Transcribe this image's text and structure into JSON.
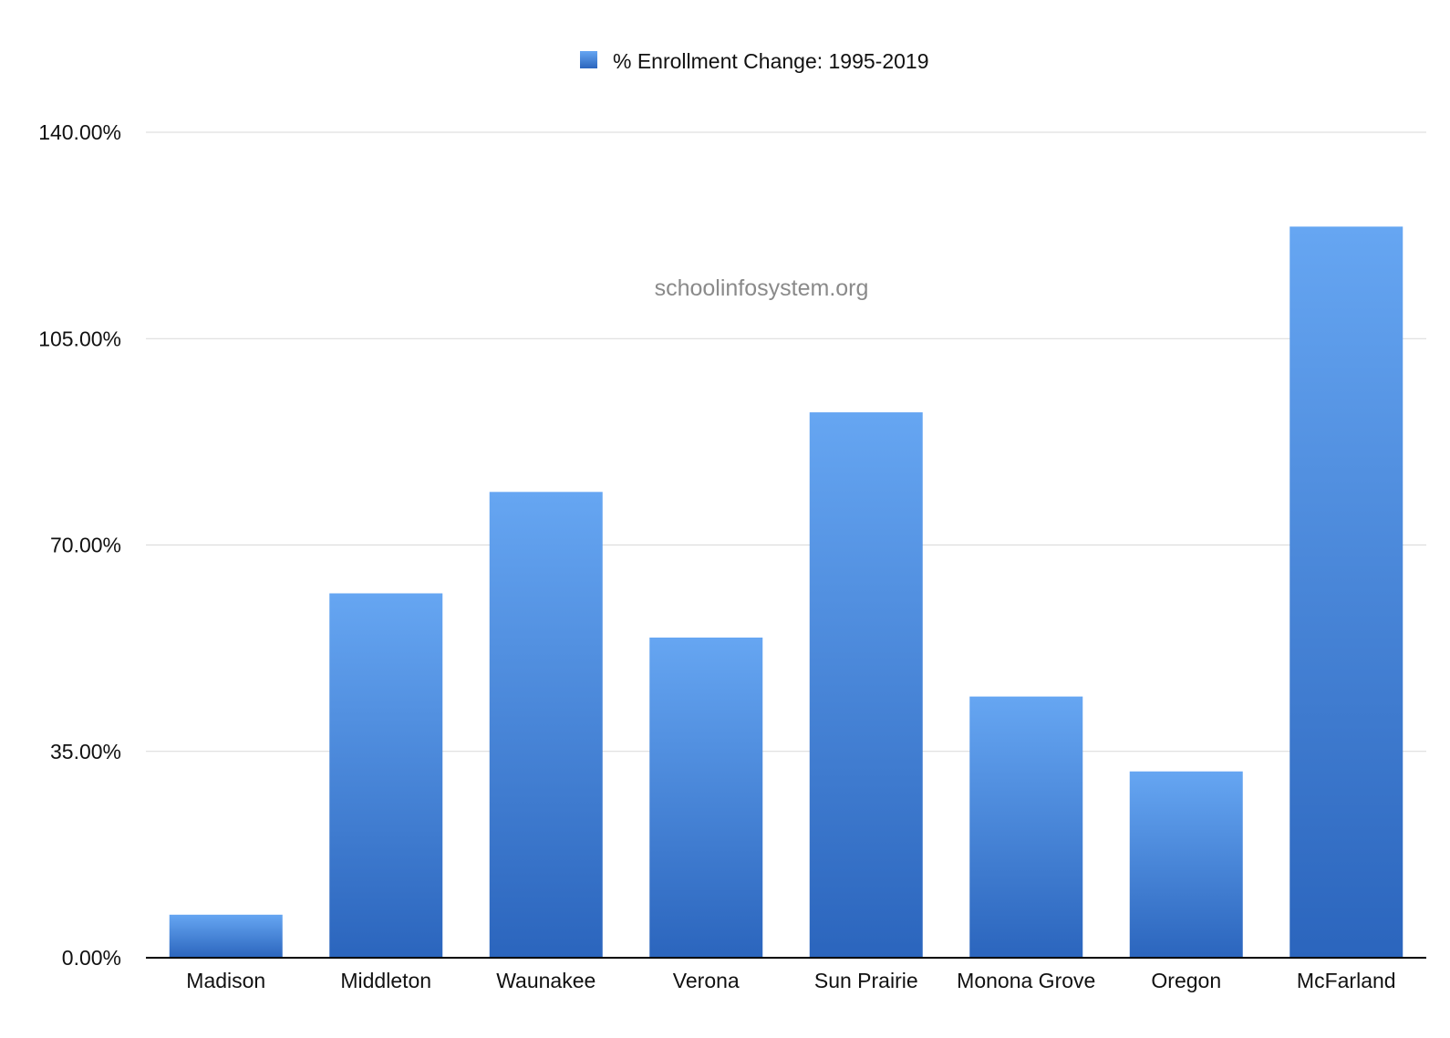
{
  "chart_data": {
    "type": "bar",
    "categories": [
      "Madison",
      "Middleton",
      "Waunakee",
      "Verona",
      "Sun Prairie",
      "Monona Grove",
      "Oregon",
      "McFarland"
    ],
    "series": [
      {
        "name": "% Enrollment Change: 1995-2019",
        "values": [
          7.3,
          61.8,
          79.0,
          54.3,
          92.5,
          44.3,
          31.6,
          124.0
        ]
      }
    ],
    "yticks": [
      "0.00%",
      "35.00%",
      "70.00%",
      "105.00%",
      "140.00%"
    ],
    "ylim": [
      0,
      140
    ],
    "grid": true,
    "legend_position": "top-center",
    "watermark": "schoolinfosystem.org",
    "colors": {
      "bar_top": "#66a6f2",
      "bar_bottom": "#2b65bd",
      "grid": "#d9d9d9",
      "axis": "#000000"
    }
  }
}
